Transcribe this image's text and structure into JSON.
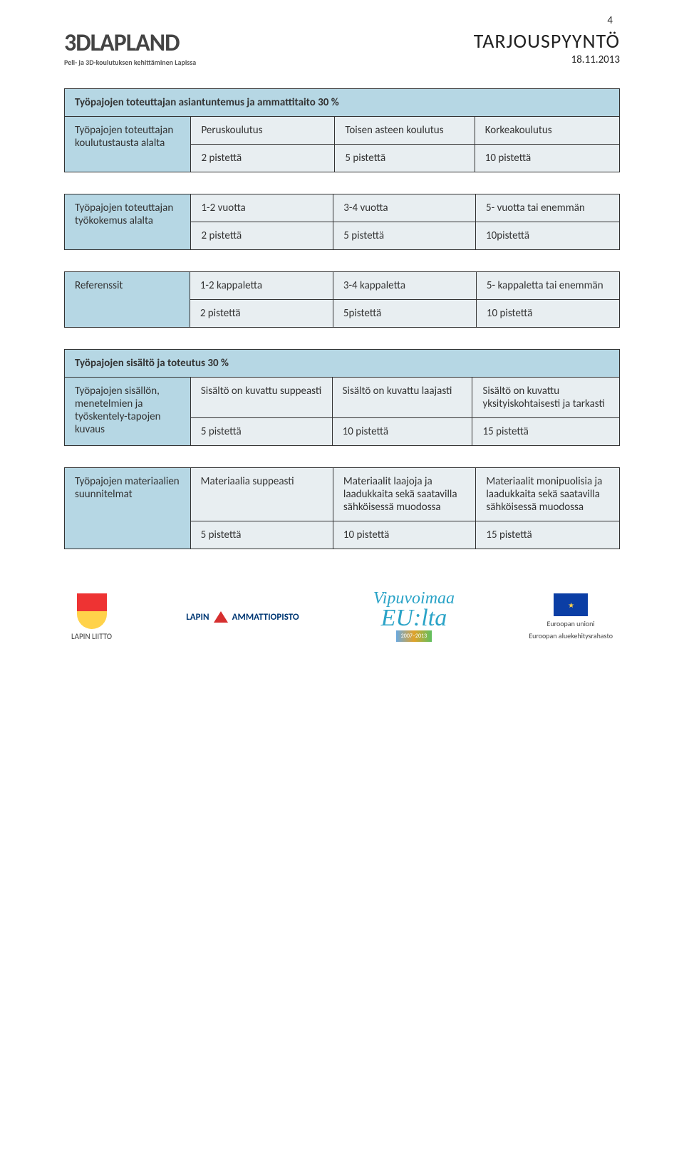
{
  "page_number": "4",
  "header": {
    "logo_text": "3DLAPLAND",
    "logo_subtext": "Peli- ja 3D-koulutuksen kehittäminen Lapissa",
    "title": "TARJOUSPYYNTÖ",
    "date": "18.11.2013"
  },
  "colors": {
    "header_bg": "#b6d7e4",
    "cell_bg": "#e8eef1",
    "border": "#333333",
    "text": "#333333"
  },
  "section1": {
    "title": "Työpajojen toteuttajan asiantuntemus ja ammattitaito 30 %",
    "tables": {
      "koulutus": {
        "label": "Työpajojen toteuttajan koulutustausta alalta",
        "cols": [
          "Peruskoulutus",
          "Toisen asteen koulutus",
          "Korkeakoulutus"
        ],
        "pts": [
          "2 pistettä",
          "5 pistettä",
          "10 pistettä"
        ]
      },
      "tyokokemus": {
        "label": "Työpajojen toteuttajan työkokemus alalta",
        "cols": [
          "1-2 vuotta",
          "3-4 vuotta",
          "5- vuotta tai enemmän"
        ],
        "pts": [
          "2 pistettä",
          "5 pistettä",
          "10pistettä"
        ]
      },
      "referenssit": {
        "label": "Referenssit",
        "cols": [
          "1-2 kappaletta",
          "3-4 kappaletta",
          "5- kappaletta tai enemmän"
        ],
        "pts": [
          "2 pistettä",
          "5pistettä",
          "10 pistettä"
        ]
      }
    }
  },
  "section2": {
    "title": "Työpajojen sisältö ja toteutus 30 %",
    "tables": {
      "sisalto": {
        "label": "Työpajojen sisällön, menetelmien ja työskentely-tapojen kuvaus",
        "cols": [
          "Sisältö on kuvattu suppeasti",
          "Sisältö on kuvattu laajasti",
          "Sisältö on kuvattu yksityiskohtaisesti ja tarkasti"
        ],
        "pts": [
          "5 pistettä",
          "10 pistettä",
          "15 pistettä"
        ]
      },
      "materiaalit": {
        "label": "Työpajojen materiaalien suunnitelmat",
        "cols": [
          "Materiaalia suppeasti",
          "Materiaalit laajoja ja laadukkaita sekä saatavilla sähköisessä muodossa",
          "Materiaalit monipuolisia ja laadukkaita sekä saatavilla sähköisessä muodossa"
        ],
        "pts": [
          "5 pistettä",
          "10 pistettä",
          "15 pistettä"
        ]
      }
    }
  },
  "footer": {
    "lapin_liitto": "LAPIN LIITTO",
    "lapin_amm": "LAPIN",
    "lapin_amm2": "AMMATTIOPISTO",
    "vipu1": "Vipuvoimaa",
    "vipu2": "EU:lta",
    "vipu_period": "2007–2013",
    "eu1": "Euroopan unioni",
    "eu2": "Euroopan aluekehitysrahasto"
  }
}
